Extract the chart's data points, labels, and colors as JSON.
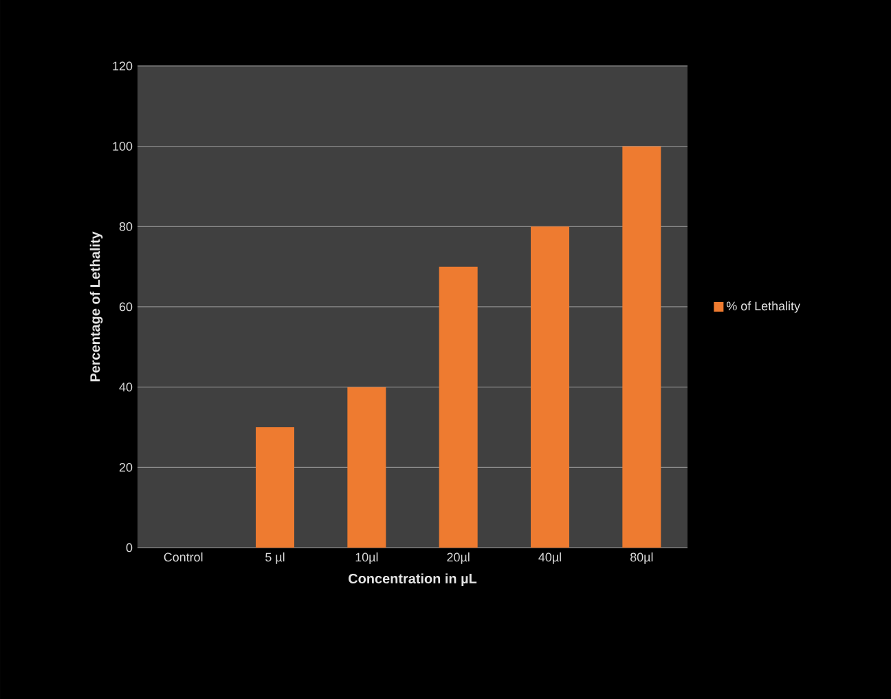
{
  "chart_data": {
    "type": "bar",
    "xlabel": "Concentration in µL",
    "ylabel": "Percentage of Lethality",
    "categories": [
      "Control",
      "5 µl",
      "10µl",
      "20µl",
      "40µl",
      "80µl"
    ],
    "series": [
      {
        "name": "% of Lethality",
        "color": "#ee7b30",
        "values": [
          0,
          30,
          40,
          70,
          80,
          100
        ]
      }
    ],
    "ylim": [
      0,
      120
    ],
    "yticks": [
      0,
      20,
      40,
      60,
      80,
      100,
      120
    ],
    "grid": "y",
    "legend": "right"
  }
}
